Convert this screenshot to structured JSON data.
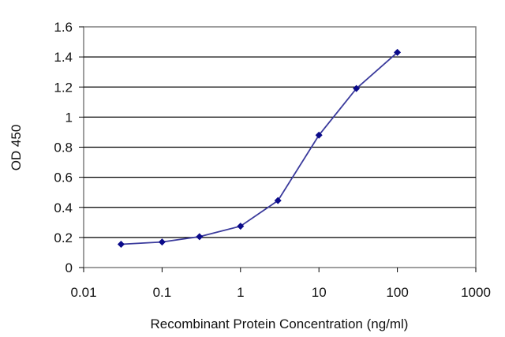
{
  "chart_data": {
    "type": "line",
    "xlabel": "Recombinant Protein Concentration (ng/ml)",
    "ylabel": "OD 450",
    "x_scale": "log",
    "xlim": [
      0.01,
      1000
    ],
    "ylim": [
      0,
      1.6
    ],
    "x_ticks": [
      "0.01",
      "0.1",
      "1",
      "10",
      "100",
      "1000"
    ],
    "y_ticks": [
      "0",
      "0.2",
      "0.4",
      "0.6",
      "0.8",
      "1",
      "1.2",
      "1.4",
      "1.6"
    ],
    "grid": "horizontal",
    "legend": "none",
    "series": [
      {
        "x": [
          0.03,
          0.1,
          0.3,
          1,
          3,
          10,
          30,
          100
        ],
        "y": [
          0.155,
          0.17,
          0.205,
          0.275,
          0.445,
          0.88,
          1.19,
          1.43
        ]
      }
    ]
  },
  "colors": {
    "line": "#3a3a9c",
    "marker": "#0a0a8a",
    "grid": "#000000",
    "frame": "#7f7f7f"
  }
}
